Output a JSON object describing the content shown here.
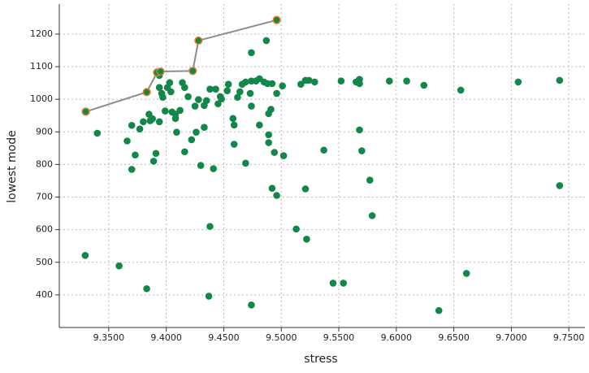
{
  "chart_data": {
    "type": "scatter",
    "xlabel": "stress",
    "ylabel": "lowest mode",
    "xlim": [
      9.307,
      9.764
    ],
    "ylim": [
      300,
      1292
    ],
    "xticks": [
      {
        "value": 9.35,
        "label": "9.3500"
      },
      {
        "value": 9.4,
        "label": "9.4000"
      },
      {
        "value": 9.45,
        "label": "9.4500"
      },
      {
        "value": 9.5,
        "label": "9.5000"
      },
      {
        "value": 9.55,
        "label": "9.5500"
      },
      {
        "value": 9.6,
        "label": "9.6000"
      },
      {
        "value": 9.65,
        "label": "9.6500"
      },
      {
        "value": 9.7,
        "label": "9.7000"
      },
      {
        "value": 9.75,
        "label": "9.7500"
      }
    ],
    "yticks": [
      400,
      500,
      600,
      700,
      800,
      900,
      1000,
      1100,
      1200
    ],
    "grid": true,
    "series": [
      {
        "color": "#12874a",
        "x": [
          9.3295,
          9.34,
          9.359,
          9.366,
          9.37,
          9.37,
          9.373,
          9.377,
          9.38,
          9.383,
          9.385,
          9.386,
          9.388,
          9.389,
          9.391,
          9.394,
          9.394,
          9.394,
          9.396,
          9.397,
          9.399,
          9.401,
          9.403,
          9.404,
          9.405,
          9.408,
          9.408,
          9.409,
          9.412,
          9.414,
          9.416,
          9.416,
          9.419,
          9.422,
          9.425,
          9.426,
          9.428,
          9.43,
          9.433,
          9.433,
          9.435,
          9.438,
          9.438,
          9.437,
          9.441,
          9.443,
          9.445,
          9.447,
          9.448,
          9.453,
          9.454,
          9.458,
          9.459,
          9.459,
          9.462,
          9.464,
          9.466,
          9.469,
          9.469,
          9.473,
          9.474,
          9.474,
          9.474,
          9.474,
          9.478,
          9.481,
          9.481,
          9.485,
          9.487,
          9.488,
          9.489,
          9.489,
          9.489,
          9.491,
          9.492,
          9.492,
          9.494,
          9.496,
          9.496,
          9.501,
          9.502,
          9.513,
          9.517,
          9.521,
          9.521,
          9.522,
          9.524,
          9.529,
          9.537,
          9.545,
          9.554,
          9.552,
          9.565,
          9.568,
          9.568,
          9.568,
          9.57,
          9.577,
          9.579,
          9.594,
          9.609,
          9.624,
          9.637,
          9.656,
          9.661,
          9.706,
          9.742,
          9.742
        ],
        "values": [
          521,
          896,
          489,
          872,
          920,
          785,
          829,
          909,
          931,
          419,
          954,
          934,
          940,
          810,
          834,
          1036,
          1073,
          931,
          1018,
          1006,
          964,
          1036,
          1051,
          1023,
          961,
          941,
          954,
          899,
          966,
          1051,
          1036,
          839,
          1008,
          876,
          979,
          899,
          999,
          797,
          914,
          981,
          996,
          1031,
          610,
          396,
          787,
          1031,
          986,
          1008,
          1001,
          1026,
          1046,
          941,
          921,
          862,
          1006,
          1023,
          1046,
          1053,
          804,
          1018,
          1143,
          1056,
          979,
          369,
          1056,
          921,
          1063,
          1053,
          1180,
          1048,
          891,
          956,
          867,
          969,
          1048,
          727,
          837,
          705,
          1018,
          1041,
          827,
          602,
          1046,
          1058,
          725,
          571,
          1058,
          1053,
          844,
          436,
          436,
          1056,
          1053,
          1048,
          1061,
          906,
          842,
          752,
          643,
          1056,
          1056,
          1043,
          352,
          1028,
          466,
          1053,
          1058,
          735
        ]
      },
      {
        "color": "#8c8c8c",
        "edge_color": "#e07b22",
        "x": [
          9.33,
          9.383,
          9.392,
          9.395,
          9.423,
          9.428,
          9.496
        ],
        "values": [
          962,
          1022,
          1082,
          1085,
          1087,
          1180,
          1243
        ]
      }
    ]
  }
}
